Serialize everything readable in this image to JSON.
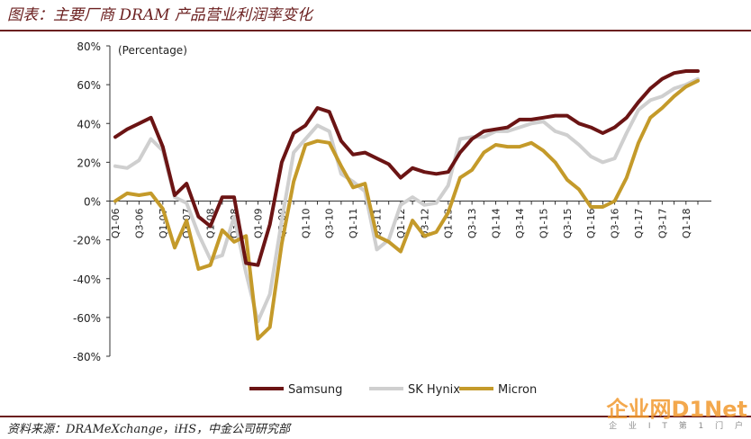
{
  "title": "图表：主要厂商 DRAM 产品营业利润率变化",
  "source": "资料来源：DRAMeXchange，iHS，中金公司研究部",
  "watermark": {
    "main": "企业网D1Net",
    "sub": "企 业 I T 第 1 门 户"
  },
  "colors": {
    "samsung": "#6b1414",
    "hynix": "#cfcfcf",
    "micron": "#c49a2a",
    "accent": "#6b1f1f"
  },
  "chart_data": {
    "type": "line",
    "ylabel": "(Percentage)",
    "ylim": [
      -80,
      80
    ],
    "yticks": [
      "80%",
      "60%",
      "40%",
      "20%",
      "0%",
      "-20%",
      "-40%",
      "-60%",
      "-80%"
    ],
    "x": [
      "Q1-06",
      "Q2-06",
      "Q3-06",
      "Q4-06",
      "Q1-07",
      "Q2-07",
      "Q3-07",
      "Q4-07",
      "Q1-08",
      "Q2-08",
      "Q3-08",
      "Q4-08",
      "Q1-09",
      "Q2-09",
      "Q3-09",
      "Q4-09",
      "Q1-10",
      "Q2-10",
      "Q3-10",
      "Q4-10",
      "Q1-11",
      "Q2-11",
      "Q3-11",
      "Q4-11",
      "Q1-12",
      "Q2-12",
      "Q3-12",
      "Q4-12",
      "Q1-13",
      "Q2-13",
      "Q3-13",
      "Q4-13",
      "Q1-14",
      "Q2-14",
      "Q3-14",
      "Q4-14",
      "Q1-15",
      "Q2-15",
      "Q3-15",
      "Q4-15",
      "Q1-16",
      "Q2-16",
      "Q3-16",
      "Q4-16",
      "Q1-17",
      "Q2-17",
      "Q3-17",
      "Q4-17",
      "Q1-18",
      "Q2-18"
    ],
    "xtick_labels": [
      "Q1-06",
      "Q3-06",
      "Q1-07",
      "Q3-07",
      "Q1-08",
      "Q3-08",
      "Q1-09",
      "Q3-09",
      "Q1-10",
      "Q3-10",
      "Q1-11",
      "Q3-11",
      "Q1-12",
      "Q3-12",
      "Q1-13",
      "Q3-13",
      "Q1-14",
      "Q3-14",
      "Q1-15",
      "Q3-15",
      "Q1-16",
      "Q3-16",
      "Q1-17",
      "Q3-17",
      "Q1-18"
    ],
    "series": [
      {
        "name": "Samsung",
        "values": [
          33,
          37,
          40,
          43,
          28,
          3,
          9,
          -8,
          -13,
          2,
          2,
          -32,
          -33,
          -12,
          20,
          35,
          39,
          48,
          46,
          31,
          24,
          25,
          22,
          19,
          12,
          17,
          15,
          14,
          15,
          25,
          32,
          36,
          37,
          38,
          42,
          42,
          43,
          44,
          44,
          40,
          38,
          35,
          38,
          43,
          51,
          58,
          63,
          66,
          67,
          67
        ]
      },
      {
        "name": "SK Hynix",
        "values": [
          18,
          17,
          21,
          32,
          26,
          2,
          -1,
          -17,
          -30,
          -28,
          -8,
          -37,
          -62,
          -48,
          -10,
          25,
          32,
          39,
          36,
          14,
          10,
          5,
          -25,
          -20,
          -2,
          2,
          -2,
          -1,
          8,
          32,
          33,
          33,
          36,
          36,
          38,
          40,
          41,
          36,
          34,
          29,
          23,
          20,
          22,
          35,
          47,
          52,
          54,
          58,
          60,
          63
        ]
      },
      {
        "name": "Micron",
        "values": [
          0,
          4,
          3,
          4,
          -4,
          -24,
          -10,
          -35,
          -33,
          -15,
          -21,
          -18,
          -71,
          -65,
          -22,
          10,
          29,
          31,
          30,
          18,
          7,
          9,
          -18,
          -21,
          -26,
          -10,
          -18,
          -16,
          -6,
          12,
          16,
          25,
          29,
          28,
          28,
          30,
          26,
          20,
          11,
          6,
          -3,
          -3,
          0,
          12,
          30,
          43,
          48,
          54,
          59,
          62
        ]
      }
    ],
    "legend": "bottom",
    "grid": false
  }
}
